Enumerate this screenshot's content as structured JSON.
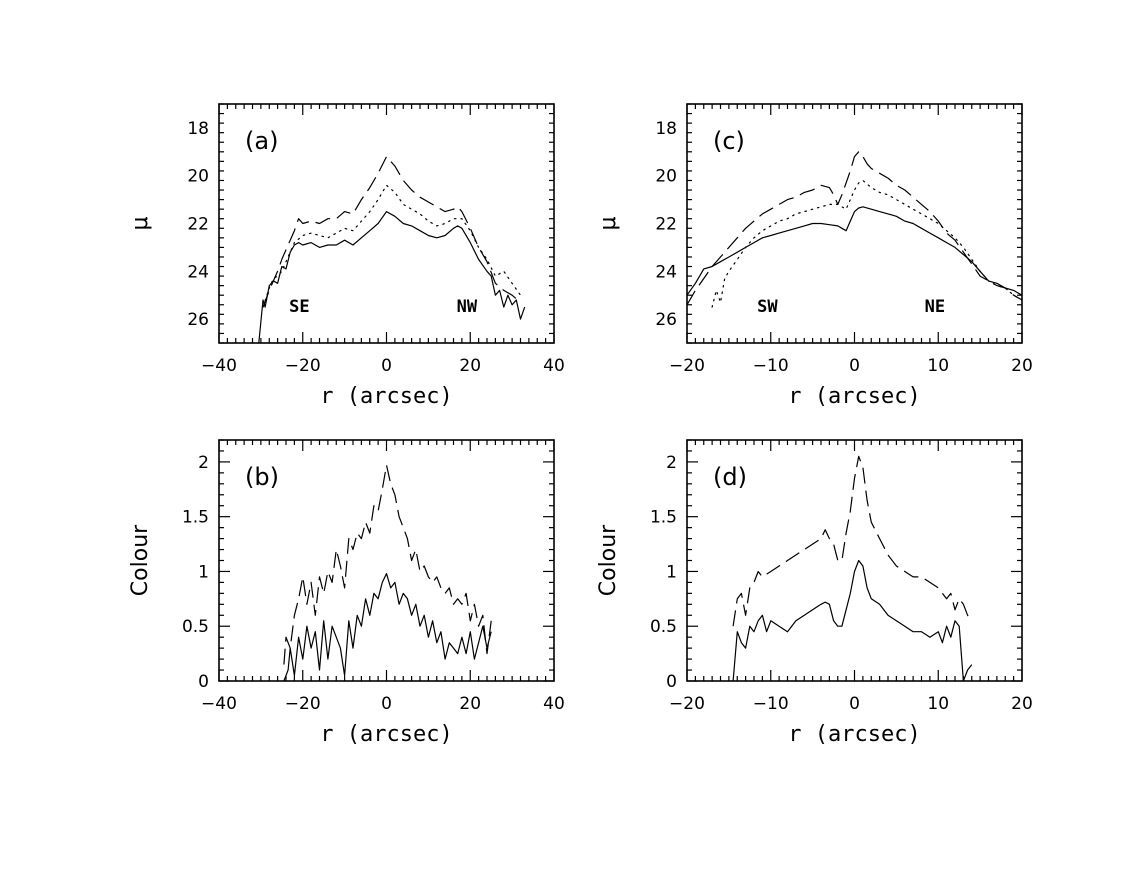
{
  "chart_data": [
    {
      "id": "a",
      "type": "line",
      "panel_label": "(a)",
      "xlabel": "r  (arcsec)",
      "ylabel": "μ",
      "xlim": [
        -40,
        40
      ],
      "ylim": [
        27,
        17
      ],
      "y_inverted": true,
      "xticks": [
        -40,
        -20,
        0,
        20,
        40
      ],
      "yticks": [
        18,
        20,
        22,
        24,
        26
      ],
      "annotations": [
        "SE",
        "NW"
      ],
      "series": [
        {
          "style": "solid",
          "x": [
            -30.5,
            -29.5,
            -29,
            -28,
            -27,
            -26,
            -25,
            -24,
            -23,
            -22,
            -21,
            -20,
            -18,
            -16,
            -14,
            -12,
            -10,
            -8,
            -6,
            -4,
            -2,
            0,
            2,
            4,
            6,
            8,
            10,
            12,
            14,
            16,
            17,
            18,
            20,
            22,
            24,
            25,
            26,
            27,
            28,
            29,
            30,
            31,
            32,
            33
          ],
          "y": [
            27,
            25.2,
            25.5,
            24.6,
            24.4,
            24.5,
            23.8,
            23.9,
            23.2,
            22.9,
            22.8,
            22.9,
            22.8,
            23.0,
            22.9,
            22.9,
            22.7,
            22.9,
            22.6,
            22.3,
            22.0,
            21.5,
            21.7,
            22.0,
            22.1,
            22.3,
            22.5,
            22.6,
            22.5,
            22.2,
            22.1,
            22.2,
            22.8,
            23.5,
            24.0,
            24.2,
            25.0,
            24.8,
            25.5,
            25.0,
            25.4,
            25.2,
            26.0,
            25.5
          ]
        },
        {
          "style": "dotted",
          "x": [
            -29.5,
            -28,
            -27,
            -26,
            -25,
            -24,
            -22,
            -20,
            -18,
            -16,
            -14,
            -12,
            -10,
            -8,
            -6,
            -4,
            -2,
            0,
            2,
            4,
            6,
            8,
            10,
            12,
            14,
            16,
            18,
            20,
            22,
            24,
            26,
            28,
            30,
            32
          ],
          "y": [
            25.5,
            24.7,
            24.3,
            24.2,
            24.0,
            23.6,
            22.8,
            22.5,
            22.4,
            22.5,
            22.6,
            22.4,
            22.2,
            22.3,
            21.9,
            21.5,
            21.0,
            20.4,
            20.7,
            21.2,
            21.4,
            21.6,
            21.9,
            22.1,
            22.0,
            21.8,
            21.8,
            22.3,
            23.0,
            23.5,
            24.2,
            24.0,
            24.5,
            25.0
          ]
        },
        {
          "style": "dashed",
          "x": [
            -29.5,
            -28,
            -27,
            -26,
            -25,
            -24,
            -23,
            -22,
            -21,
            -20,
            -18,
            -16,
            -14,
            -12,
            -10,
            -8,
            -6,
            -4,
            -2,
            0,
            2,
            4,
            6,
            8,
            10,
            12,
            14,
            16,
            17,
            18,
            20,
            22,
            24,
            26,
            28,
            30,
            32
          ],
          "y": [
            25.5,
            24.8,
            24.4,
            24.0,
            23.5,
            23.1,
            22.7,
            22.3,
            21.8,
            22.0,
            21.9,
            22.0,
            21.8,
            21.8,
            21.5,
            21.6,
            21.0,
            20.5,
            19.9,
            19.2,
            19.6,
            20.2,
            20.6,
            20.9,
            21.1,
            21.3,
            21.5,
            21.4,
            21.3,
            21.5,
            22.2,
            23.0,
            23.6,
            24.5,
            24.8,
            25.0,
            25.3
          ]
        }
      ]
    },
    {
      "id": "b",
      "type": "line",
      "panel_label": "(b)",
      "xlabel": "r  (arcsec)",
      "ylabel": "Colour",
      "xlim": [
        -40,
        40
      ],
      "ylim": [
        0,
        2.2
      ],
      "xticks": [
        -40,
        -20,
        0,
        20,
        40
      ],
      "yticks": [
        0,
        0.5,
        1,
        1.5,
        2
      ],
      "yticklabels": [
        "0",
        "0.5",
        "1",
        "1.5",
        "2"
      ],
      "series": [
        {
          "style": "solid",
          "x": [
            -24.5,
            -23.5,
            -23,
            -22,
            -21,
            -20,
            -19,
            -18,
            -17,
            -16,
            -15,
            -14,
            -13,
            -12,
            -11,
            -10,
            -9,
            -8,
            -7,
            -6,
            -5,
            -4,
            -3,
            -2,
            -1,
            0,
            1,
            2,
            3,
            4,
            5,
            6,
            7,
            8,
            9,
            10,
            11,
            12,
            13,
            14,
            15,
            16,
            17,
            18,
            19,
            20,
            21,
            22,
            23,
            24,
            25
          ],
          "y": [
            0,
            0.1,
            0.3,
            0.05,
            0.4,
            0.2,
            0.5,
            0.3,
            0.45,
            0.1,
            0.55,
            0.2,
            0.5,
            0.4,
            0.3,
            0.05,
            0.55,
            0.3,
            0.6,
            0.5,
            0.75,
            0.6,
            0.8,
            0.75,
            0.9,
            0.98,
            0.85,
            0.9,
            0.7,
            0.8,
            0.75,
            0.6,
            0.7,
            0.5,
            0.6,
            0.4,
            0.55,
            0.35,
            0.45,
            0.2,
            0.35,
            0.3,
            0.25,
            0.4,
            0.25,
            0.45,
            0.2,
            0.35,
            0.5,
            0.3,
            0.45
          ]
        },
        {
          "style": "dashed",
          "x": [
            -24.5,
            -24,
            -23,
            -22,
            -21,
            -20,
            -19,
            -18,
            -17,
            -16,
            -15,
            -14,
            -13,
            -12,
            -11,
            -10,
            -9,
            -8,
            -7,
            -6,
            -5,
            -4,
            -3,
            -2,
            -1,
            0,
            1,
            2,
            3,
            4,
            5,
            6,
            7,
            8,
            9,
            10,
            11,
            12,
            13,
            14,
            15,
            16,
            17,
            18,
            19,
            20,
            21,
            22,
            23,
            24,
            25
          ],
          "y": [
            0.15,
            0.4,
            0.3,
            0.6,
            0.75,
            0.95,
            0.7,
            0.9,
            0.6,
            0.95,
            0.8,
            1.0,
            0.9,
            1.2,
            1.05,
            0.85,
            1.3,
            1.2,
            1.35,
            1.3,
            1.45,
            1.35,
            1.6,
            1.55,
            1.75,
            1.97,
            1.8,
            1.7,
            1.5,
            1.4,
            1.3,
            1.1,
            1.2,
            1.0,
            1.05,
            0.95,
            0.9,
            0.95,
            0.85,
            0.8,
            0.85,
            0.7,
            0.75,
            0.7,
            0.8,
            0.55,
            0.7,
            0.5,
            0.6,
            0.25,
            0.55
          ]
        }
      ]
    },
    {
      "id": "c",
      "type": "line",
      "panel_label": "(c)",
      "xlabel": "r  (arcsec)",
      "ylabel": "μ",
      "xlim": [
        -20,
        20
      ],
      "ylim": [
        27,
        17
      ],
      "y_inverted": true,
      "xticks": [
        -20,
        -10,
        0,
        10,
        20
      ],
      "yticks": [
        18,
        20,
        22,
        24,
        26
      ],
      "annotations": [
        "SW",
        "NE"
      ],
      "series": [
        {
          "style": "solid",
          "x": [
            -20,
            -19,
            -18,
            -17,
            -16,
            -15,
            -14,
            -13,
            -12,
            -11,
            -10,
            -9,
            -8,
            -7,
            -6,
            -5,
            -4,
            -3,
            -2,
            -1.5,
            -1,
            -0.5,
            0,
            0.5,
            1,
            2,
            3,
            4,
            5,
            6,
            7,
            8,
            9,
            10,
            11,
            12,
            13,
            14,
            15,
            16,
            17,
            18,
            19,
            20
          ],
          "y": [
            25.0,
            24.5,
            23.9,
            23.8,
            23.6,
            23.4,
            23.2,
            23.0,
            22.8,
            22.6,
            22.5,
            22.4,
            22.3,
            22.2,
            22.1,
            22.0,
            22.0,
            22.05,
            22.1,
            22.2,
            22.3,
            21.9,
            21.5,
            21.35,
            21.3,
            21.4,
            21.5,
            21.6,
            21.7,
            21.9,
            22.0,
            22.2,
            22.4,
            22.6,
            22.8,
            23.0,
            23.3,
            23.6,
            24.0,
            24.4,
            24.5,
            24.7,
            24.8,
            25.0
          ]
        },
        {
          "style": "dotted",
          "x": [
            -17,
            -16.5,
            -16,
            -15.5,
            -15,
            -14,
            -13,
            -12,
            -11,
            -10,
            -9,
            -8,
            -7,
            -6,
            -5,
            -4,
            -3,
            -2,
            -1,
            -0.5,
            0,
            0.5,
            1,
            2,
            3,
            4,
            5,
            6,
            7,
            8,
            9,
            10,
            11,
            12,
            13,
            14,
            15,
            16,
            17,
            18,
            19,
            20
          ],
          "y": [
            25.5,
            24.8,
            25.3,
            24.3,
            24.0,
            23.5,
            23.0,
            22.6,
            22.3,
            22.1,
            21.9,
            21.8,
            21.6,
            21.5,
            21.4,
            21.3,
            21.2,
            21.2,
            21.4,
            21.0,
            20.6,
            20.3,
            20.2,
            20.5,
            20.7,
            20.8,
            21.0,
            21.2,
            21.4,
            21.6,
            21.8,
            22.0,
            22.3,
            22.6,
            23.0,
            23.5,
            24.0,
            24.4,
            24.6,
            24.7,
            25.0,
            25.2
          ]
        },
        {
          "style": "dashed",
          "x": [
            -20,
            -19,
            -18,
            -17,
            -16,
            -15,
            -14,
            -13,
            -12,
            -11,
            -10,
            -9,
            -8,
            -7,
            -6,
            -5,
            -4,
            -3,
            -2.5,
            -2,
            -1.5,
            -1,
            -0.5,
            0,
            0.5,
            1,
            1.5,
            2,
            3,
            4,
            5,
            6,
            7,
            8,
            9,
            10,
            11,
            12,
            13,
            14,
            15,
            16,
            17,
            18,
            19,
            20
          ],
          "y": [
            25.4,
            24.8,
            24.3,
            23.8,
            23.4,
            23.0,
            22.6,
            22.2,
            21.9,
            21.6,
            21.4,
            21.2,
            21.0,
            20.9,
            20.7,
            20.6,
            20.4,
            20.5,
            20.8,
            21.2,
            20.8,
            20.3,
            19.8,
            19.2,
            19.0,
            19.2,
            19.5,
            19.7,
            19.9,
            20.1,
            20.4,
            20.6,
            20.9,
            21.2,
            21.5,
            21.9,
            22.4,
            22.7,
            23.2,
            23.7,
            24.2,
            24.4,
            24.6,
            24.7,
            25.0,
            25.2
          ]
        }
      ]
    },
    {
      "id": "d",
      "type": "line",
      "panel_label": "(d)",
      "xlabel": "r  (arcsec)",
      "ylabel": "Colour",
      "xlim": [
        -20,
        20
      ],
      "ylim": [
        0,
        2.2
      ],
      "xticks": [
        -20,
        -10,
        0,
        10,
        20
      ],
      "yticks": [
        0,
        0.5,
        1,
        1.5,
        2
      ],
      "yticklabels": [
        "0",
        "0.5",
        "1",
        "1.5",
        "2"
      ],
      "series": [
        {
          "style": "solid",
          "x": [
            -14.5,
            -14,
            -13.5,
            -13,
            -12.5,
            -12,
            -11.5,
            -11,
            -10.5,
            -10,
            -9,
            -8,
            -7,
            -6,
            -5,
            -4,
            -3.5,
            -3,
            -2.5,
            -2,
            -1.5,
            -1,
            -0.5,
            0,
            0.5,
            1,
            1.5,
            2,
            3,
            4,
            5,
            6,
            7,
            8,
            9,
            10,
            10.5,
            11,
            11.5,
            12,
            12.5,
            13,
            13.5,
            14
          ],
          "y": [
            0,
            0.45,
            0.35,
            0.3,
            0.5,
            0.45,
            0.55,
            0.6,
            0.45,
            0.55,
            0.5,
            0.45,
            0.55,
            0.6,
            0.65,
            0.7,
            0.72,
            0.7,
            0.55,
            0.5,
            0.5,
            0.65,
            0.8,
            1.0,
            1.1,
            1.05,
            0.85,
            0.75,
            0.7,
            0.6,
            0.55,
            0.5,
            0.45,
            0.45,
            0.4,
            0.45,
            0.35,
            0.5,
            0.4,
            0.55,
            0.5,
            0.0,
            0.1,
            0.15
          ]
        },
        {
          "style": "dashed",
          "x": [
            -14.5,
            -14,
            -13.5,
            -13,
            -12.5,
            -12,
            -11.5,
            -11,
            -10,
            -9,
            -8,
            -7,
            -6,
            -5,
            -4,
            -3.5,
            -3,
            -2.5,
            -2,
            -1.5,
            -1,
            -0.5,
            0,
            0.5,
            1,
            1.5,
            2,
            3,
            4,
            5,
            6,
            7,
            8,
            9,
            10,
            10.5,
            11,
            11.5,
            12,
            12.5,
            13,
            13.5,
            14
          ],
          "y": [
            0.5,
            0.75,
            0.8,
            0.6,
            0.85,
            0.9,
            1.0,
            0.95,
            1.0,
            1.05,
            1.1,
            1.15,
            1.2,
            1.25,
            1.3,
            1.38,
            1.3,
            1.25,
            1.1,
            1.1,
            1.35,
            1.55,
            1.85,
            2.05,
            1.95,
            1.65,
            1.45,
            1.3,
            1.15,
            1.05,
            1.0,
            0.95,
            0.95,
            0.9,
            0.85,
            0.8,
            0.75,
            0.8,
            0.65,
            0.75,
            0.7,
            0.6,
            0.55
          ]
        }
      ]
    }
  ]
}
